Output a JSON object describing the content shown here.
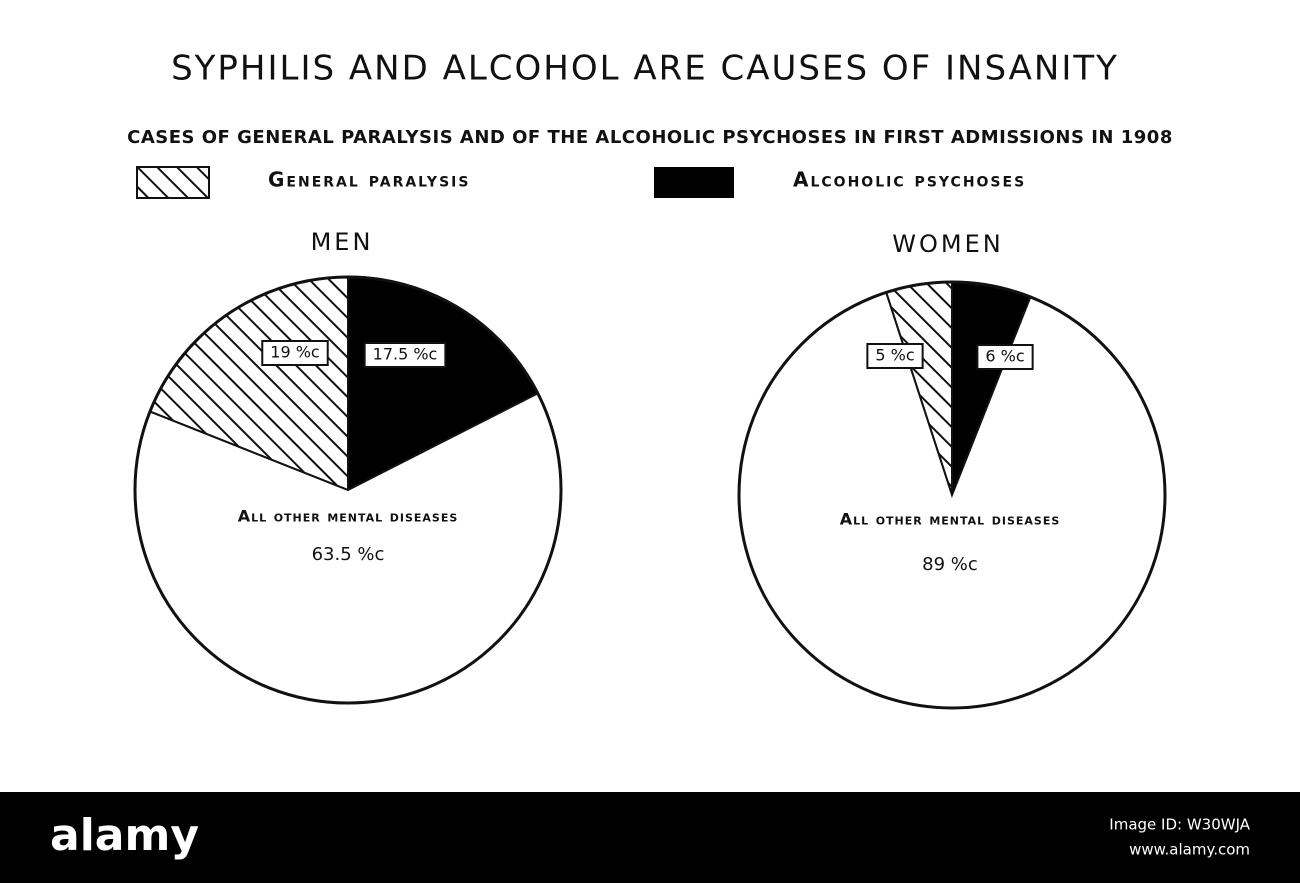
{
  "title": "SYPHILIS AND ALCOHOL ARE CAUSES OF INSANITY",
  "subtitle": "CASES OF GENERAL PARALYSIS AND OF THE ALCOHOLIC PSYCHOSES IN FIRST ADMISSIONS IN 1908",
  "chart_data": [
    {
      "type": "pie",
      "title": "MEN",
      "categories": [
        "General paralysis",
        "Alcoholic psychoses",
        "All other mental diseases"
      ],
      "values": [
        19,
        17.5,
        63.5
      ],
      "value_labels": [
        "19 %c",
        "17.5 %c",
        "63.5 %c"
      ],
      "colors": [
        "#ffffff",
        "#000000",
        "#ffffff"
      ],
      "hatch": [
        true,
        false,
        false
      ]
    },
    {
      "type": "pie",
      "title": "WOMEN",
      "categories": [
        "General paralysis",
        "Alcoholic psychoses",
        "All other mental diseases"
      ],
      "values": [
        5,
        6,
        89
      ],
      "value_labels": [
        "5 %c",
        "6 %c",
        "89 %c"
      ],
      "colors": [
        "#ffffff",
        "#000000",
        "#ffffff"
      ],
      "hatch": [
        true,
        false,
        false
      ]
    }
  ],
  "watermark": {
    "logo": "alamy",
    "image_id": "Image ID: W30WJA",
    "url": "www.alamy.com"
  }
}
